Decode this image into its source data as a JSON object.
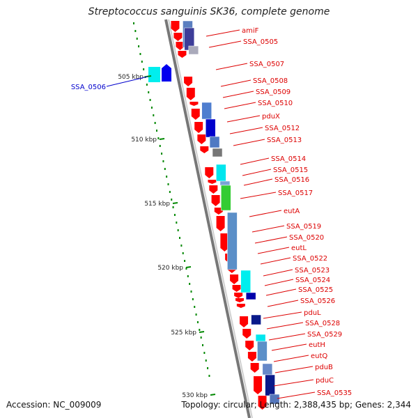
{
  "title": "Streptococcus sanguinis SK36, complete genome",
  "accession": "Accession: NC_009009",
  "info": "Topology: circular; Length: 2,388,435 bp; Genes: 2,344",
  "kbp_ticks": [
    "505 kbp",
    "510 kbp",
    "515 kbp",
    "520 kbp",
    "525 kbp",
    "530 kbp"
  ],
  "left_labels": [
    "SSA_0506"
  ],
  "right_labels": [
    "amiF",
    "SSA_0505",
    "SSA_0507",
    "SSA_0508",
    "SSA_0509",
    "SSA_0510",
    "pduX",
    "SSA_0512",
    "SSA_0513",
    "SSA_0514",
    "SSA_0515",
    "SSA_0516",
    "SSA_0517",
    "eutA",
    "SSA_0519",
    "SSA_0520",
    "eutL",
    "SSA_0522",
    "SSA_0523",
    "SSA_0524",
    "SSA_0525",
    "SSA_0526",
    "pduL",
    "SSA_0528",
    "SSA_0529",
    "eutH",
    "eutQ",
    "pduB",
    "pduC",
    "SSA_0535"
  ],
  "colors": {
    "gene_forward": "#ff0000",
    "gene_reverse": "#0000ee",
    "label_forward": "#dd0000",
    "label_reverse": "#0000cc",
    "tick_green": "#008800",
    "backbone": "#888888"
  }
}
